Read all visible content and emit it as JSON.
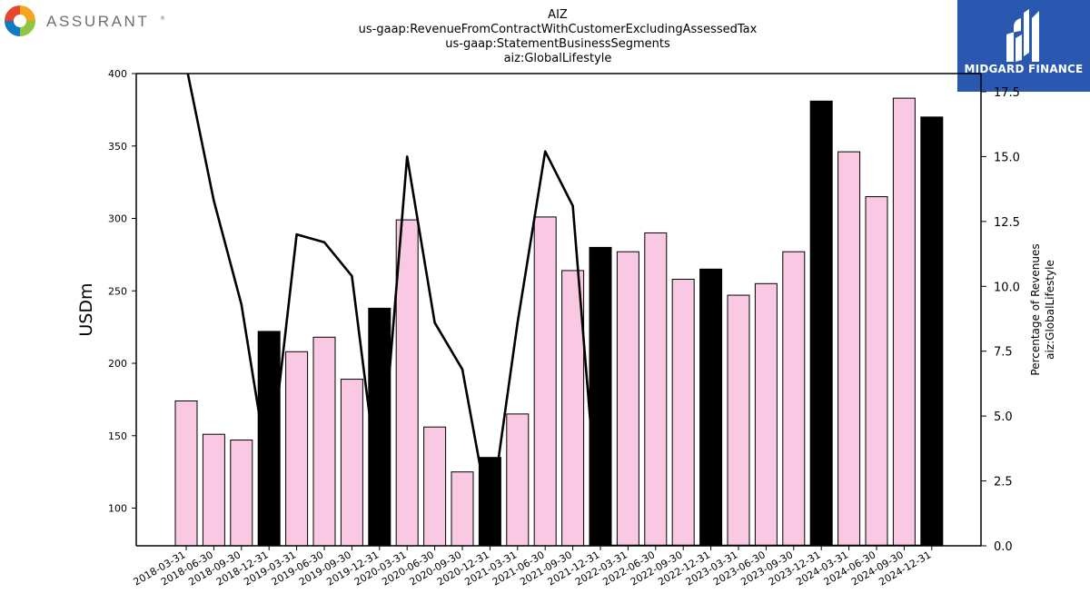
{
  "logos": {
    "left_text": "ASSURANT",
    "right_text": "MIDGARD FINANCE"
  },
  "chart_data": {
    "type": "bar",
    "title_lines": [
      "AIZ",
      "us-gaap:RevenueFromContractWithCustomerExcludingAssessedTax",
      "us-gaap:StatementBusinessSegments",
      "aiz:GlobalLifestyle"
    ],
    "ylabel": "USDm",
    "y2label_lines": [
      "Percentage of Revenues",
      "aiz:GlobalLifestyle"
    ],
    "ylim": [
      74,
      400
    ],
    "y2lim": [
      0,
      18.2
    ],
    "yticks": [
      100,
      150,
      200,
      250,
      300,
      350,
      400
    ],
    "y2ticks": [
      "0.0",
      "2.5",
      "5.0",
      "7.5",
      "10.0",
      "12.5",
      "15.0",
      "17.5"
    ],
    "categories": [
      "2018-03-31",
      "2018-06-30",
      "2018-09-30",
      "2018-12-31",
      "2019-03-31",
      "2019-06-30",
      "2019-09-30",
      "2019-12-31",
      "2020-03-31",
      "2020-06-30",
      "2020-09-30",
      "2020-12-31",
      "2021-03-31",
      "2021-06-30",
      "2021-09-30",
      "2021-12-31",
      "2022-03-31",
      "2022-06-30",
      "2022-09-30",
      "2022-12-31",
      "2023-03-31",
      "2023-06-30",
      "2023-09-30",
      "2023-12-31",
      "2024-03-31",
      "2024-06-30",
      "2024-09-30",
      "2024-12-31"
    ],
    "values": [
      174,
      151,
      147,
      222,
      208,
      218,
      189,
      238,
      299,
      156,
      125,
      135,
      165,
      301,
      264,
      280,
      277,
      290,
      258,
      265,
      247,
      255,
      277,
      381,
      346,
      315,
      383,
      370
    ],
    "year_end": [
      false,
      false,
      false,
      true,
      false,
      false,
      false,
      true,
      false,
      false,
      false,
      true,
      false,
      false,
      false,
      true,
      false,
      false,
      false,
      true,
      false,
      false,
      false,
      true,
      false,
      false,
      false,
      true
    ],
    "pct_of_revenues": [
      18.5,
      13.3,
      9.3,
      2.7,
      12.0,
      11.7,
      10.4,
      2.0,
      15.0,
      8.6,
      6.8,
      1.0,
      8.6,
      15.2,
      13.1,
      0.0,
      0.0,
      0.0,
      0.0,
      0.0,
      0.0,
      0.0,
      0.0,
      0.0,
      0.0,
      0.0,
      0.0,
      0.0
    ],
    "colors": {
      "quarter_bar": "#f9c8e3",
      "year_bar": "#000000",
      "line": "#000000"
    },
    "grid": false
  }
}
